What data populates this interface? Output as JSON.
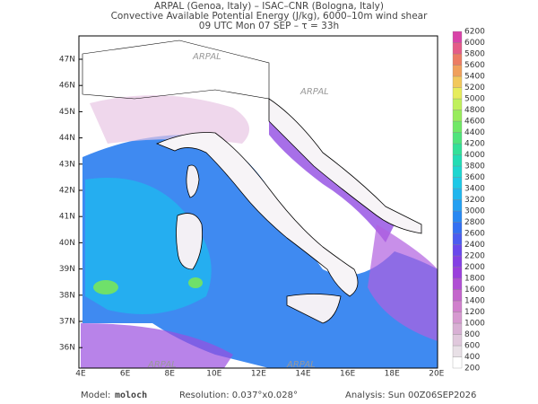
{
  "header": {
    "line1": "ARPAL (Genoa, Italy)  –  ISAC–CNR (Bologna, Italy)",
    "line2": "Convective Available Potential Energy (J/kg), 6000–10m wind shear",
    "line3": "09 UTC Mon 07 SEP  –  τ = 33h"
  },
  "map": {
    "latitude_labels": [
      "47N",
      "46N",
      "45N",
      "44N",
      "43N",
      "42N",
      "41N",
      "40N",
      "39N",
      "38N",
      "37N",
      "36N"
    ],
    "longitude_labels": [
      "4E",
      "6E",
      "8E",
      "10E",
      "12E",
      "14E",
      "16E",
      "18E",
      "20E"
    ],
    "watermark": "ARPAL"
  },
  "colorbar": {
    "levels": [
      200,
      400,
      600,
      800,
      1000,
      1200,
      1400,
      1600,
      1800,
      2000,
      2200,
      2400,
      2600,
      2800,
      3000,
      3200,
      3400,
      3600,
      3800,
      4000,
      4200,
      4400,
      4600,
      4800,
      5000,
      5200,
      5400,
      5600,
      5800,
      6000,
      6200
    ]
  },
  "footer": {
    "model_label": "Model:",
    "model": "moloch",
    "resolution": "Resolution: 0.037°x0.028°",
    "analysis": "Analysis: Sun 00Z06SEP2026"
  }
}
